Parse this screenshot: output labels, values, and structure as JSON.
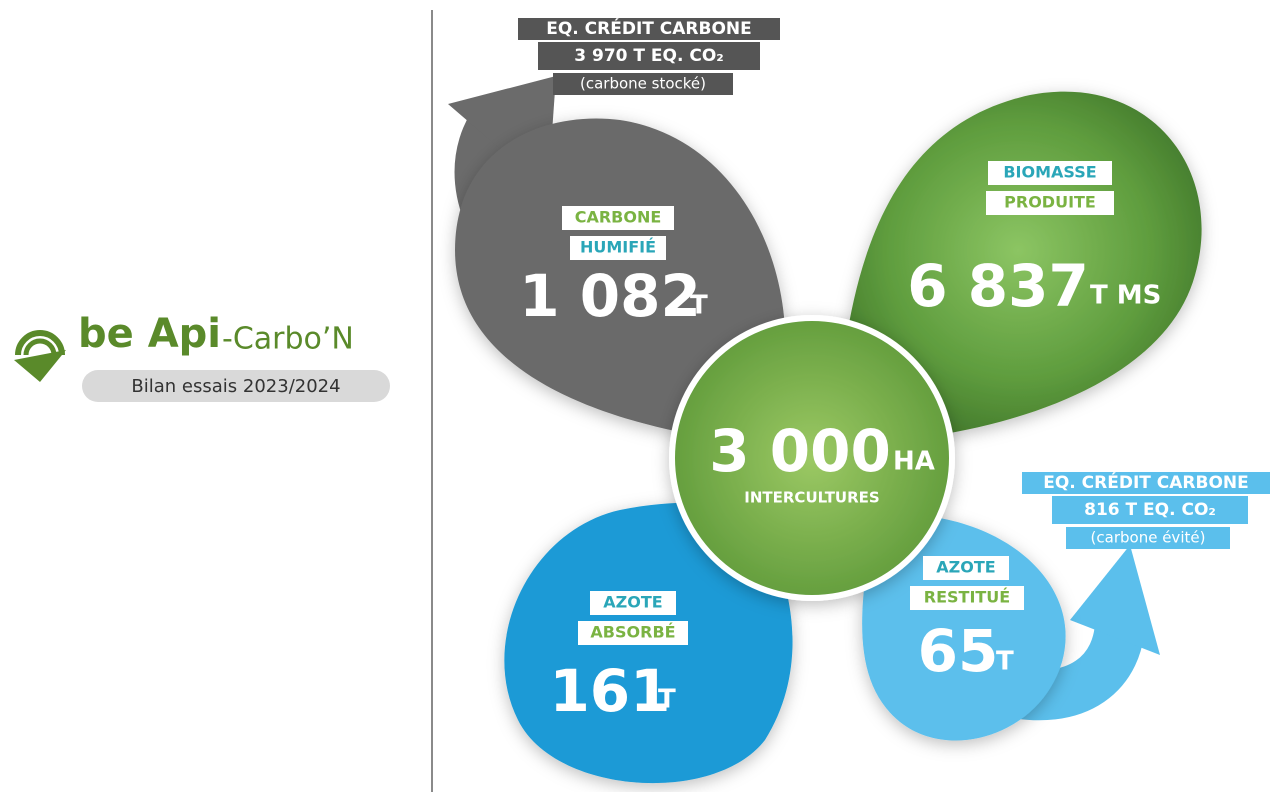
{
  "logo": {
    "brand": "be Api",
    "suffix": "-Carbo’N",
    "subtitle": "Bilan essais 2023/2024"
  },
  "center": {
    "value": "3 000",
    "unit": "HA",
    "label": "INTERCULTURES"
  },
  "petals": [
    {
      "label": [
        "CARBONE",
        "HUMIFIÉ"
      ],
      "value": "1 082",
      "unit": "T",
      "credit": {
        "title": "EQ. CRÉDIT CARBONE",
        "value": "3 970 T EQ. CO₂",
        "note": "(carbone stocké)"
      }
    },
    {
      "label": [
        "BIOMASSE",
        "PRODUITE"
      ],
      "value": "6 837",
      "unit": "T MS"
    },
    {
      "label": [
        "AZOTE",
        "ABSORBÉ"
      ],
      "value": "161",
      "unit": "T"
    },
    {
      "label": [
        "AZOTE",
        "RESTITUÉ"
      ],
      "value": "65",
      "unit": "T",
      "credit": {
        "title": "EQ. CRÉDIT CARBONE",
        "value": "816 T EQ. CO₂",
        "note": "(carbone évité)"
      }
    }
  ]
}
